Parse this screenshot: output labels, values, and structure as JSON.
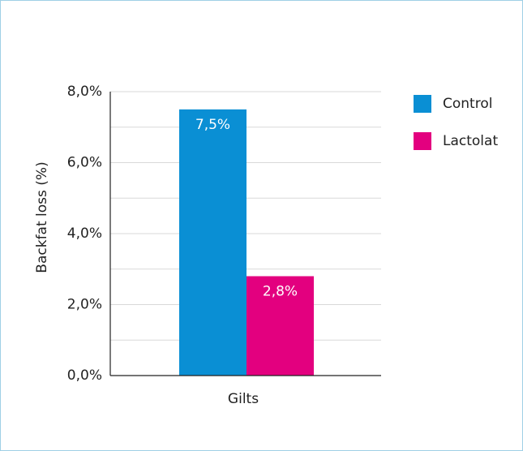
{
  "chart_data": {
    "type": "bar",
    "categories": [
      "Gilts"
    ],
    "series": [
      {
        "name": "Control",
        "values": [
          7.5
        ],
        "label": "7,5%",
        "color": "#0a8fd4"
      },
      {
        "name": "Lactolat",
        "values": [
          2.8
        ],
        "label": "2,8%",
        "color": "#e3007f"
      }
    ],
    "ylabel": "Backfat loss (%)",
    "xlabel": "",
    "ylim": [
      0,
      8
    ],
    "y_ticks": [
      {
        "value": 0,
        "label": "0,0%"
      },
      {
        "value": 2,
        "label": "2,0%"
      },
      {
        "value": 4,
        "label": "4,0%"
      },
      {
        "value": 6,
        "label": "6,0%"
      },
      {
        "value": 8,
        "label": "8,0%"
      }
    ],
    "grid": true,
    "legend": "right",
    "grid_color": "#d9d9d9",
    "axis_color": "#222222"
  }
}
